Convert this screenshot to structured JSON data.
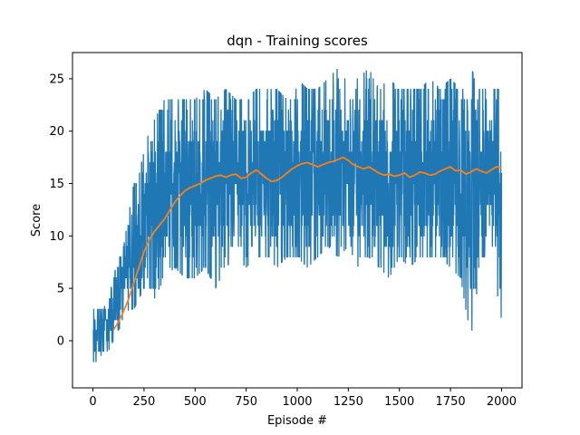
{
  "chart_data": {
    "type": "line",
    "title": "dqn - Training scores",
    "xlabel": "Episode #",
    "ylabel": "Score",
    "xlim": [
      -100,
      2100
    ],
    "ylim": [
      -4.5,
      27.5
    ],
    "xticks": [
      0,
      250,
      500,
      750,
      1000,
      1250,
      1500,
      1750,
      2000
    ],
    "yticks": [
      0,
      5,
      10,
      15,
      20,
      25
    ],
    "grid": false,
    "legend": "none",
    "series": [
      {
        "kind": "raw_scores",
        "color": "#1f77b4",
        "envelope": {
          "x": [
            0,
            25,
            50,
            75,
            100,
            125,
            150,
            175,
            200,
            225,
            250,
            275,
            300,
            350,
            400,
            450,
            500,
            550,
            600,
            650,
            700,
            750,
            800,
            850,
            900,
            950,
            1000,
            1050,
            1100,
            1150,
            1200,
            1250,
            1300,
            1350,
            1400,
            1450,
            1500,
            1550,
            1600,
            1650,
            1700,
            1750,
            1800,
            1850,
            1900,
            1950,
            2000
          ],
          "low": [
            -3,
            -2,
            -1,
            -1,
            0,
            1,
            2,
            3,
            3,
            4,
            5,
            5,
            4,
            6,
            7,
            6,
            6,
            7,
            5,
            7,
            8,
            7,
            8,
            8,
            7,
            8,
            8,
            7,
            8,
            9,
            8,
            9,
            7,
            8,
            7,
            6,
            8,
            7,
            8,
            8,
            8,
            7,
            6,
            0,
            8,
            8,
            2
          ],
          "high": [
            3,
            3,
            3,
            4,
            6,
            8,
            9,
            12,
            15,
            16,
            18,
            20,
            21,
            23,
            23,
            23,
            23,
            24,
            23,
            24,
            23,
            23,
            24,
            24,
            24,
            23,
            25,
            24,
            24,
            25,
            26,
            25,
            25,
            26,
            24,
            25,
            24,
            24,
            24,
            25,
            24,
            25,
            24,
            26,
            24,
            24,
            24
          ]
        }
      },
      {
        "kind": "moving_average",
        "color": "#ff7f0e",
        "x": [
          100,
          125,
          150,
          175,
          200,
          225,
          250,
          275,
          300,
          325,
          350,
          375,
          400,
          425,
          450,
          475,
          500,
          525,
          550,
          575,
          600,
          625,
          650,
          675,
          700,
          725,
          750,
          775,
          800,
          825,
          850,
          875,
          900,
          925,
          950,
          975,
          1000,
          1025,
          1050,
          1075,
          1100,
          1125,
          1150,
          1175,
          1200,
          1225,
          1250,
          1275,
          1300,
          1325,
          1350,
          1375,
          1400,
          1425,
          1450,
          1475,
          1500,
          1525,
          1550,
          1575,
          1600,
          1625,
          1650,
          1675,
          1700,
          1725,
          1750,
          1775,
          1800,
          1825,
          1850,
          1875,
          1900,
          1925,
          1950,
          1975,
          2000
        ],
        "y": [
          1.0,
          1.8,
          2.8,
          4.0,
          5.5,
          7.0,
          8.5,
          9.6,
          10.4,
          11.0,
          11.6,
          12.4,
          13.2,
          13.8,
          14.3,
          14.6,
          14.8,
          15.0,
          15.3,
          15.5,
          15.7,
          15.8,
          15.6,
          15.8,
          15.9,
          15.5,
          15.6,
          16.0,
          16.3,
          15.9,
          15.5,
          15.2,
          15.3,
          15.6,
          16.0,
          16.4,
          16.7,
          16.9,
          17.0,
          16.8,
          16.6,
          16.8,
          17.0,
          17.1,
          17.3,
          17.5,
          17.2,
          16.8,
          16.6,
          16.4,
          16.6,
          16.3,
          16.0,
          15.8,
          15.9,
          15.7,
          15.8,
          16.0,
          15.6,
          15.8,
          16.1,
          16.0,
          15.8,
          15.9,
          16.2,
          16.4,
          16.6,
          16.2,
          16.3,
          15.9,
          16.1,
          16.4,
          16.2,
          16.0,
          16.3,
          16.6,
          16.5
        ]
      }
    ]
  }
}
